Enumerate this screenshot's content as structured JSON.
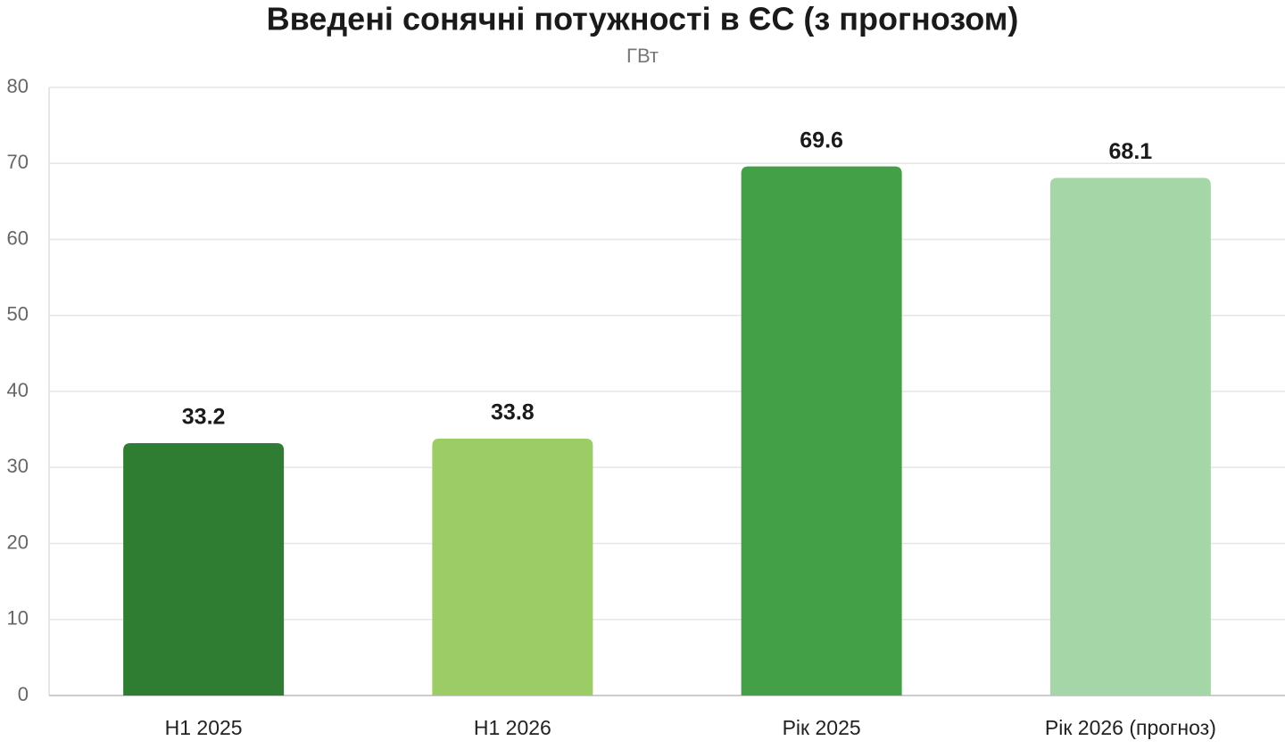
{
  "chart_data": {
    "type": "bar",
    "title": "Введені сонячні потужності в ЄС (з прогнозом)",
    "subtitle": "ГВт",
    "categories": [
      "H1 2025",
      "H1 2026",
      "Рік 2025",
      "Рік 2026 (прогноз)"
    ],
    "values": [
      33.2,
      33.8,
      69.6,
      68.1
    ],
    "colors": [
      "#2e7d32",
      "#9ccc65",
      "#43a047",
      "#a5d6a7"
    ],
    "ylim": [
      0,
      80
    ],
    "yticks": [
      0,
      10,
      20,
      30,
      40,
      50,
      60,
      70,
      80
    ],
    "grid": true
  }
}
